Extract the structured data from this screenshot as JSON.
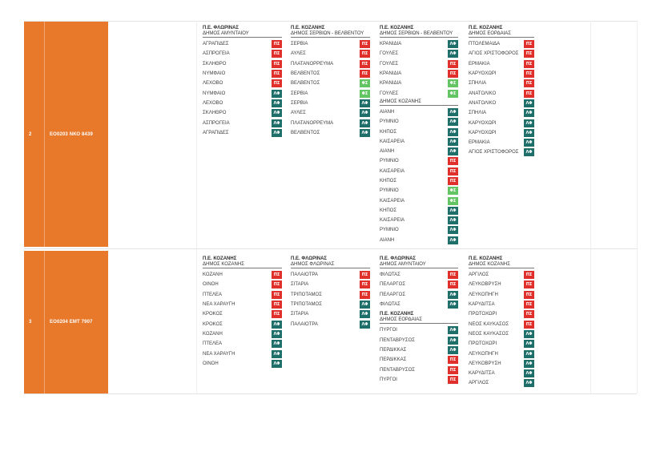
{
  "badge_colors": {
    "ΠΣ": "#e0302b",
    "ΛΦ": "#1e6e6a",
    "ΦΣ": "#63c463"
  },
  "rows": [
    {
      "number": "2",
      "code": "ΕΟ0203 ΝΚΟ 8439",
      "columns": [
        {
          "groups": [
            {
              "region": "Π.Ε. ΦΛΩΡΙΝΑΣ",
              "municipality": "ΔΗΜΟΣ ΑΜΥΝΤΑΙΟΥ",
              "stops": [
                {
                  "name": "ΑΓΡΑΠΙΔΕΣ",
                  "badge": "ΠΣ"
                },
                {
                  "name": "ΑΣΠΡΟΓΕΙΑ",
                  "badge": "ΠΣ"
                },
                {
                  "name": "ΣΚΛΗΘΡΟ",
                  "badge": "ΠΣ"
                },
                {
                  "name": "ΝΥΜΦΑΙΟ",
                  "badge": "ΠΣ"
                },
                {
                  "name": "ΛΕΧΟΒΟ",
                  "badge": "ΠΣ"
                },
                {
                  "name": "ΝΥΜΦΑΙΟ",
                  "badge": "ΛΦ"
                },
                {
                  "name": "ΛΕΧΟΒΟ",
                  "badge": "ΛΦ"
                },
                {
                  "name": "ΣΚΛΗΘΡΟ",
                  "badge": "ΛΦ"
                },
                {
                  "name": "ΑΣΠΡΟΓΕΙΑ",
                  "badge": "ΛΦ"
                },
                {
                  "name": "ΑΓΡΑΠΙΔΕΣ",
                  "badge": "ΛΦ"
                }
              ]
            }
          ]
        },
        {
          "groups": [
            {
              "region": "Π.Ε. ΚΟΖΑΝΗΣ",
              "municipality": "ΔΗΜΟΣ ΣΕΡΒΙΩΝ - ΒΕΛΒΕΝΤΟΥ",
              "stops": [
                {
                  "name": "ΣΕΡΒΙΑ",
                  "badge": "ΠΣ"
                },
                {
                  "name": "ΑΥΛΕΣ",
                  "badge": "ΠΣ"
                },
                {
                  "name": "ΠΛΑΤΑΝΟΡΡΕΥΜΑ",
                  "badge": "ΠΣ"
                },
                {
                  "name": "ΒΕΛΒΕΝΤΟΣ",
                  "badge": "ΠΣ"
                },
                {
                  "name": "ΒΕΛΒΕΝΤΟΣ",
                  "badge": "ΦΣ"
                },
                {
                  "name": "ΣΕΡΒΙΑ",
                  "badge": "ΦΣ"
                },
                {
                  "name": "ΣΕΡΒΙΑ",
                  "badge": "ΛΦ"
                },
                {
                  "name": "ΑΥΛΕΣ",
                  "badge": "ΛΦ"
                },
                {
                  "name": "ΠΛΑΤΑΝΟΡΡΕΥΜΑ",
                  "badge": "ΛΦ"
                },
                {
                  "name": "ΒΕΛΒΕΝΤΟΣ",
                  "badge": "ΛΦ"
                }
              ]
            }
          ]
        },
        {
          "groups": [
            {
              "region": "Π.Ε. ΚΟΖΑΝΗΣ",
              "municipality": "ΔΗΜΟΣ ΣΕΡΒΙΩΝ - ΒΕΛΒΕΝΤΟΥ",
              "stops": [
                {
                  "name": "ΚΡΑΝΙΔΙΑ",
                  "badge": "ΛΦ"
                },
                {
                  "name": "ΓΟΥΛΕΣ",
                  "badge": "ΛΦ"
                },
                {
                  "name": "ΓΟΥΛΕΣ",
                  "badge": "ΠΣ"
                },
                {
                  "name": "ΚΡΑΝΙΔΙΑ",
                  "badge": "ΠΣ"
                },
                {
                  "name": "ΚΡΑΝΙΔΙΑ",
                  "badge": "ΦΣ"
                },
                {
                  "name": "ΓΟΥΛΕΣ",
                  "badge": "ΦΣ"
                }
              ]
            },
            {
              "municipality": "ΔΗΜΟΣ ΚΟΖΑΝΗΣ",
              "stops": [
                {
                  "name": "ΑΙΑΝΗ",
                  "badge": "ΛΦ"
                },
                {
                  "name": "ΡΥΜΝΙΟ",
                  "badge": "ΛΦ"
                },
                {
                  "name": "ΚΗΠΟΣ",
                  "badge": "ΛΦ"
                },
                {
                  "name": "ΚΑΙΣΑΡΕΙΑ",
                  "badge": "ΛΦ"
                },
                {
                  "name": "ΑΙΑΝΗ",
                  "badge": "ΛΦ"
                },
                {
                  "name": "ΡΥΜΝΙΟ",
                  "badge": "ΠΣ"
                },
                {
                  "name": "ΚΑΙΣΑΡΕΙΑ",
                  "badge": "ΠΣ"
                },
                {
                  "name": "ΚΗΠΟΣ",
                  "badge": "ΠΣ"
                },
                {
                  "name": "ΡΥΜΝΙΟ",
                  "badge": "ΦΣ"
                },
                {
                  "name": "ΚΑΙΣΑΡΕΙΑ",
                  "badge": "ΦΣ"
                },
                {
                  "name": "ΚΗΠΟΣ",
                  "badge": "ΛΦ"
                },
                {
                  "name": "ΚΑΙΣΑΡΕΙΑ",
                  "badge": "ΛΦ"
                },
                {
                  "name": "ΡΥΜΝΙΟ",
                  "badge": "ΛΦ"
                },
                {
                  "name": "ΑΙΑΝΗ",
                  "badge": "ΛΦ"
                }
              ]
            }
          ]
        },
        {
          "groups": [
            {
              "region": "Π.Ε. ΚΟΖΑΝΗΣ",
              "municipality": "ΔΗΜΟΣ ΕΟΡΔΑΙΑΣ",
              "stops": [
                {
                  "name": "ΠΤΟΛΕΜΑΙΔΑ",
                  "badge": "ΠΣ"
                },
                {
                  "name": "ΑΓΙΟΣ ΧΡΙΣΤΟΦΟΡΟΣ",
                  "badge": "ΠΣ"
                },
                {
                  "name": "ΕΡΜΑΚΙΑ",
                  "badge": "ΠΣ"
                },
                {
                  "name": "ΚΑΡΥΟΧΩΡΙ",
                  "badge": "ΠΣ"
                },
                {
                  "name": "ΣΠΗΛΙΑ",
                  "badge": "ΠΣ"
                },
                {
                  "name": "ΑΝΑΤΟΛΙΚΟ",
                  "badge": "ΠΣ"
                },
                {
                  "name": "ΑΝΑΤΟΛΙΚΟ",
                  "badge": "ΛΦ"
                },
                {
                  "name": "ΣΠΗΛΙΑ",
                  "badge": "ΛΦ"
                },
                {
                  "name": "ΚΑΡΥΟΧΩΡΙ",
                  "badge": "ΛΦ"
                },
                {
                  "name": "ΚΑΡΥΟΧΩΡΙ",
                  "badge": "ΛΦ"
                },
                {
                  "name": "ΕΡΜΑΚΙΑ",
                  "badge": "ΛΦ"
                },
                {
                  "name": "ΑΓΙΟΣ ΧΡΙΣΤΟΦΟΡΟΣ",
                  "badge": "ΛΦ"
                }
              ]
            }
          ]
        }
      ]
    },
    {
      "number": "3",
      "code": "ΕΟ0204 ΕΜΤ 7907",
      "columns": [
        {
          "groups": [
            {
              "region": "Π.Ε. ΚΟΖΑΝΗΣ",
              "municipality": "ΔΗΜΟΣ ΚΟΖΑΝΗΣ",
              "stops": [
                {
                  "name": "ΚΟΖΑΝΗ",
                  "badge": "ΠΣ"
                },
                {
                  "name": "ΟΙΝΟΗ",
                  "badge": "ΠΣ"
                },
                {
                  "name": "ΠΤΕΛΕΑ",
                  "badge": "ΠΣ"
                },
                {
                  "name": "ΝΕΑ ΧΑΡΑΥΓΗ",
                  "badge": "ΠΣ"
                },
                {
                  "name": "ΚΡΟΚΟΣ",
                  "badge": "ΠΣ"
                },
                {
                  "name": "ΚΡΟΚΟΣ",
                  "badge": "ΛΦ"
                },
                {
                  "name": "ΚΟΖΑΝΗ",
                  "badge": "ΛΦ"
                },
                {
                  "name": "ΠΤΕΛΕΑ",
                  "badge": "ΛΦ"
                },
                {
                  "name": "ΝΕΑ ΧΑΡΑΥΓΗ",
                  "badge": "ΛΦ"
                },
                {
                  "name": "ΟΙΝΟΗ",
                  "badge": "ΛΦ"
                }
              ]
            }
          ]
        },
        {
          "groups": [
            {
              "region": "Π.Ε. ΦΛΩΡΙΝΑΣ",
              "municipality": "ΔΗΜΟΣ ΦΛΩΡΙΝΑΣ",
              "stops": [
                {
                  "name": "ΠΑΛΑΙΟΤΡΑ",
                  "badge": "ΠΣ"
                },
                {
                  "name": "ΣΙΤΑΡΙΑ",
                  "badge": "ΠΣ"
                },
                {
                  "name": "ΤΡΙΠΟΤΑΜΟΣ",
                  "badge": "ΠΣ"
                },
                {
                  "name": "ΤΡΙΠΟΤΑΜΟΣ",
                  "badge": "ΛΦ"
                },
                {
                  "name": "ΣΙΤΑΡΙΑ",
                  "badge": "ΛΦ"
                },
                {
                  "name": "ΠΑΛΑΙΟΤΡΑ",
                  "badge": "ΛΦ"
                }
              ]
            }
          ]
        },
        {
          "groups": [
            {
              "region": "Π.Ε. ΦΛΩΡΙΝΑΣ",
              "municipality": "ΔΗΜΟΣ ΑΜΥΝΤΑΙΟΥ",
              "stops": [
                {
                  "name": "ΦΙΛΩΤΑΣ",
                  "badge": "ΠΣ"
                },
                {
                  "name": "ΠΕΛΑΡΓΟΣ",
                  "badge": "ΠΣ"
                },
                {
                  "name": "ΠΕΛΑΡΓΟΣ",
                  "badge": "ΛΦ"
                },
                {
                  "name": "ΦΙΛΩΤΑΣ",
                  "badge": "ΛΦ"
                }
              ]
            },
            {
              "region": "Π.Ε. ΚΟΖΑΝΗΣ",
              "municipality": "ΔΗΜΟΣ ΕΟΡΔΑΙΑΣ",
              "stops": [
                {
                  "name": "ΠΥΡΓΟΙ",
                  "badge": "ΛΦ"
                },
                {
                  "name": "ΠΕΝΤΑΒΡΥΣΟΣ",
                  "badge": "ΛΦ"
                },
                {
                  "name": "ΠΕΡΔΙΚΚΑΣ",
                  "badge": "ΛΦ"
                },
                {
                  "name": "ΠΕΡΔΙΚΚΑΣ",
                  "badge": "ΠΣ"
                },
                {
                  "name": "ΠΕΝΤΑΒΡΥΣΟΣ",
                  "badge": "ΠΣ"
                },
                {
                  "name": "ΠΥΡΓΟΙ",
                  "badge": "ΠΣ"
                }
              ]
            }
          ]
        },
        {
          "groups": [
            {
              "region": "Π.Ε. ΚΟΖΑΝΗΣ",
              "municipality": "ΔΗΜΟΣ ΚΟΖΑΝΗΣ",
              "stops": [
                {
                  "name": "ΑΡΓΙΛΟΣ",
                  "badge": "ΠΣ"
                },
                {
                  "name": "ΛΕΥΚΟΒΡΥΣΗ",
                  "badge": "ΠΣ"
                },
                {
                  "name": "ΛΕΥΚΟΠΗΓΗ",
                  "badge": "ΠΣ"
                },
                {
                  "name": "ΚΑΡΥΔΙΤΣΑ",
                  "badge": "ΠΣ"
                },
                {
                  "name": "ΠΡΩΤΟΧΩΡΙ",
                  "badge": "ΠΣ"
                },
                {
                  "name": "ΝΕΟΣ ΚΑΥΚΑΣΟΣ",
                  "badge": "ΠΣ"
                },
                {
                  "name": "ΝΕΟΣ ΚΑΥΚΑΣΟΣ",
                  "badge": "ΛΦ"
                },
                {
                  "name": "ΠΡΩΤΟΧΩΡΙ",
                  "badge": "ΛΦ"
                },
                {
                  "name": "ΛΕΥΚΟΠΗΓΗ",
                  "badge": "ΛΦ"
                },
                {
                  "name": "ΛΕΥΚΟΒΡΥΣΗ",
                  "badge": "ΛΦ"
                },
                {
                  "name": "ΚΑΡΥΔΙΤΣΑ",
                  "badge": "ΛΦ"
                },
                {
                  "name": "ΑΡΓΙΛΟΣ",
                  "badge": "ΛΦ"
                }
              ]
            }
          ]
        }
      ]
    }
  ]
}
